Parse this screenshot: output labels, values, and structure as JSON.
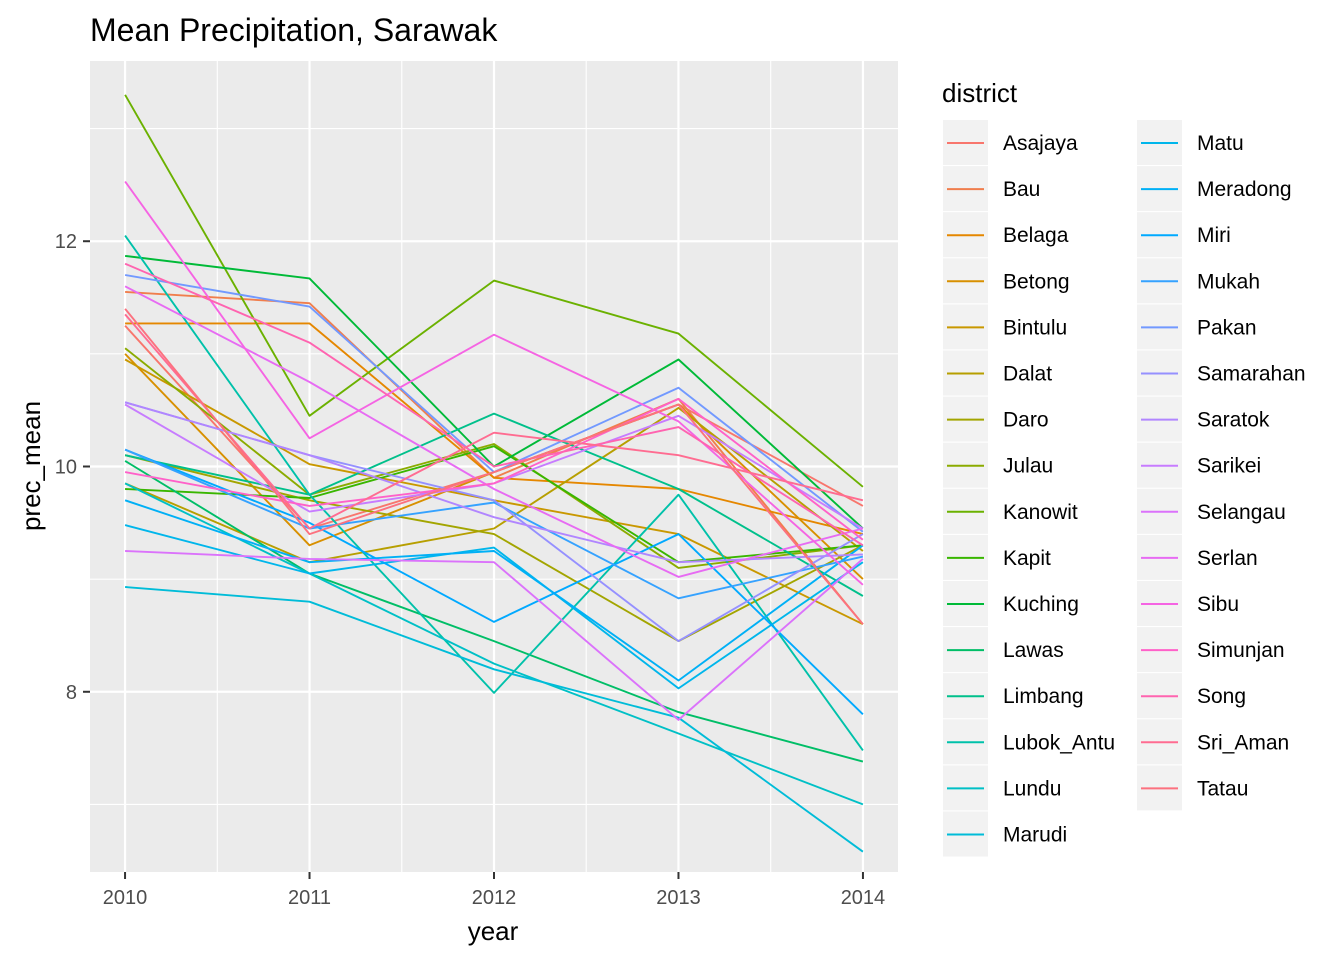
{
  "chart_data": {
    "type": "line",
    "title": "Mean Precipitation, Sarawak",
    "xlabel": "year",
    "ylabel": "prec_mean",
    "x": [
      2010,
      2011,
      2012,
      2013,
      2014
    ],
    "x_ticks": [
      "2010",
      "2011",
      "2012",
      "2013",
      "2014"
    ],
    "y_ticks": [
      8,
      10,
      12
    ],
    "y_tick_labels": [
      "8",
      "10",
      "12"
    ],
    "xlim": [
      2009.81,
      2014.19
    ],
    "ylim": [
      6.4,
      13.6
    ],
    "grid": true,
    "legend": {
      "title": "district",
      "placement": "right",
      "columns": 2
    },
    "series": [
      {
        "name": "Asajaya",
        "color": "#F8766D",
        "values": [
          11.25,
          9.45,
          9.95,
          10.55,
          9.65
        ]
      },
      {
        "name": "Bau",
        "color": "#F07E4D",
        "values": [
          11.55,
          11.45,
          9.9,
          10.6,
          8.6
        ]
      },
      {
        "name": "Belaga",
        "color": "#E58700",
        "values": [
          11.27,
          11.27,
          9.9,
          9.8,
          9.4
        ]
      },
      {
        "name": "Betong",
        "color": "#D89000",
        "values": [
          11.0,
          9.3,
          9.95,
          10.55,
          9.0
        ]
      },
      {
        "name": "Bintulu",
        "color": "#C99800",
        "values": [
          10.95,
          10.02,
          9.7,
          9.4,
          8.6
        ]
      },
      {
        "name": "Dalat",
        "color": "#B79F00",
        "values": [
          9.85,
          9.15,
          9.45,
          10.52,
          9.25
        ]
      },
      {
        "name": "Daro",
        "color": "#A3A500",
        "values": [
          10.1,
          9.7,
          9.4,
          8.45,
          9.3
        ]
      },
      {
        "name": "Julau",
        "color": "#8BAB00",
        "values": [
          11.05,
          9.75,
          10.2,
          9.1,
          9.3
        ]
      },
      {
        "name": "Kanowit",
        "color": "#6BB100",
        "values": [
          13.3,
          10.45,
          11.65,
          11.18,
          9.82
        ]
      },
      {
        "name": "Kapit",
        "color": "#39B600",
        "values": [
          9.8,
          9.72,
          10.18,
          9.15,
          9.3
        ]
      },
      {
        "name": "Kuching",
        "color": "#00BA38",
        "values": [
          11.87,
          11.67,
          10.0,
          10.95,
          9.45
        ]
      },
      {
        "name": "Lawas",
        "color": "#00BE67",
        "values": [
          10.05,
          9.05,
          8.45,
          7.82,
          7.38
        ]
      },
      {
        "name": "Limbang",
        "color": "#00C08B",
        "values": [
          10.1,
          9.75,
          10.47,
          9.8,
          8.85
        ]
      },
      {
        "name": "Lubok_Antu",
        "color": "#00C1AA",
        "values": [
          12.05,
          9.75,
          7.99,
          9.75,
          7.48
        ]
      },
      {
        "name": "Lundu",
        "color": "#00C0C6",
        "values": [
          9.85,
          9.05,
          8.25,
          7.63,
          7.0
        ]
      },
      {
        "name": "Marudi",
        "color": "#00BCD8",
        "values": [
          8.93,
          8.8,
          8.2,
          7.77,
          6.58
        ]
      },
      {
        "name": "Matu",
        "color": "#00B6EB",
        "values": [
          9.48,
          9.05,
          9.28,
          8.03,
          9.15
        ]
      },
      {
        "name": "Meradong",
        "color": "#00B0F6",
        "values": [
          9.7,
          9.15,
          9.25,
          8.1,
          9.3
        ]
      },
      {
        "name": "Miri",
        "color": "#00A9FF",
        "values": [
          10.15,
          9.5,
          8.62,
          9.4,
          7.8
        ]
      },
      {
        "name": "Mukah",
        "color": "#35A2FF",
        "values": [
          10.15,
          9.45,
          9.68,
          8.83,
          9.2
        ]
      },
      {
        "name": "Pakan",
        "color": "#7299FF",
        "values": [
          11.7,
          11.42,
          9.95,
          10.7,
          9.42
        ]
      },
      {
        "name": "Samarahan",
        "color": "#9590FF",
        "values": [
          10.57,
          10.1,
          9.7,
          8.45,
          9.4
        ]
      },
      {
        "name": "Saratok",
        "color": "#B186FF",
        "values": [
          10.57,
          10.1,
          9.55,
          9.15,
          9.22
        ]
      },
      {
        "name": "Sarikei",
        "color": "#C77CFF",
        "values": [
          10.55,
          9.6,
          9.85,
          10.45,
          9.45
        ]
      },
      {
        "name": "Selangau",
        "color": "#DB72FB",
        "values": [
          9.25,
          9.18,
          9.15,
          7.75,
          9.18
        ]
      },
      {
        "name": "Serlan",
        "color": "#E76BF3",
        "values": [
          11.6,
          10.75,
          9.8,
          9.02,
          9.45
        ]
      },
      {
        "name": "Sibu",
        "color": "#F564E3",
        "values": [
          12.53,
          10.25,
          11.17,
          10.4,
          8.95
        ]
      },
      {
        "name": "Simunjan",
        "color": "#FF61C9",
        "values": [
          9.95,
          9.65,
          9.85,
          10.6,
          9.35
        ]
      },
      {
        "name": "Song",
        "color": "#FF64B0",
        "values": [
          11.8,
          11.1,
          10.0,
          10.35,
          9.3
        ]
      },
      {
        "name": "Sri_Aman",
        "color": "#FF6C91",
        "values": [
          11.35,
          9.45,
          10.3,
          10.1,
          9.7
        ]
      },
      {
        "name": "Tatau",
        "color": "#FC717F",
        "values": [
          11.4,
          9.4,
          9.95,
          10.55,
          8.6
        ]
      }
    ]
  }
}
